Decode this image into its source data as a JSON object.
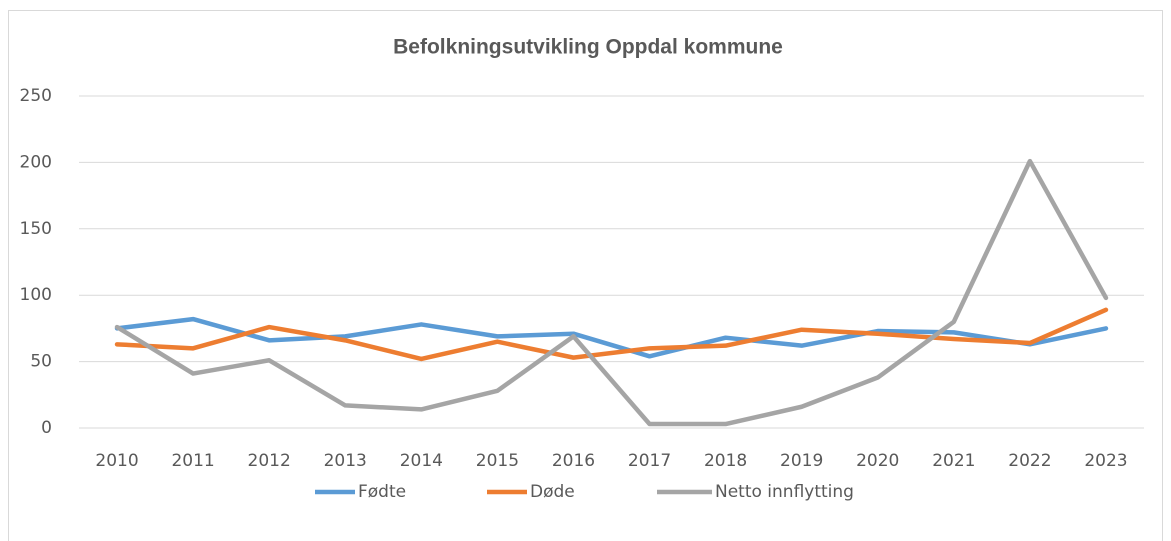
{
  "chart_data": {
    "type": "line",
    "title": "Befolkningsutvikling Oppdal kommune",
    "categories": [
      "2010",
      "2011",
      "2012",
      "2013",
      "2014",
      "2015",
      "2016",
      "2017",
      "2018",
      "2019",
      "2020",
      "2021",
      "2022",
      "2023"
    ],
    "series": [
      {
        "name": "Fødte",
        "color": "#5b9bd5",
        "values": [
          75,
          82,
          66,
          69,
          78,
          69,
          71,
          54,
          68,
          62,
          73,
          72,
          63,
          75
        ]
      },
      {
        "name": "Døde",
        "color": "#ed7d31",
        "values": [
          63,
          60,
          76,
          66,
          52,
          65,
          53,
          60,
          62,
          74,
          71,
          67,
          64,
          89
        ]
      },
      {
        "name": "Netto innflytting",
        "color": "#a5a5a5",
        "values": [
          76,
          41,
          51,
          17,
          14,
          28,
          69,
          3,
          3,
          16,
          38,
          80,
          201,
          98
        ]
      }
    ],
    "ylim": [
      0,
      250
    ],
    "yticks": [
      0,
      50,
      100,
      150,
      200,
      250
    ],
    "grid": true,
    "legend": "bottom"
  }
}
